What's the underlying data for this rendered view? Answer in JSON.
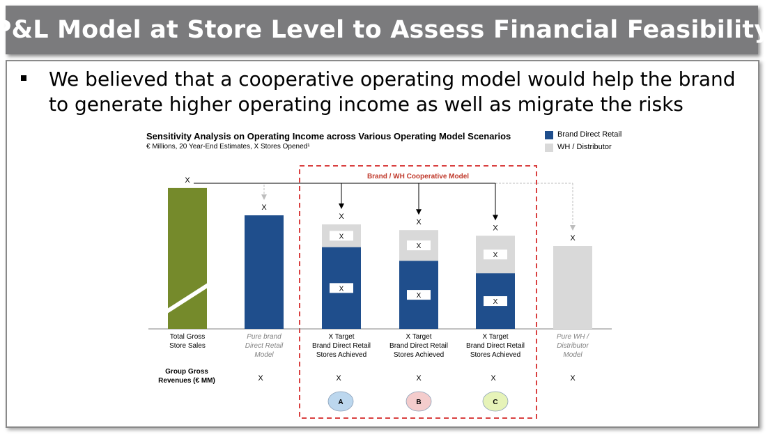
{
  "header": {
    "title": "P&L Model at Store Level to Assess Financial Feasibility"
  },
  "bullet": {
    "text": "We believed that a cooperative operating model would help the brand to generate higher operating income as well as migrate the risks"
  },
  "chart": {
    "title": "Sensitivity Analysis on Operating Income across Various Operating Model Scenarios",
    "subtitle": "€ Millions, 20   Year-End Estimates, X Stores Opened¹",
    "coop_box_label": "Brand / WH Cooperative Model",
    "legend": [
      {
        "label": "Brand Direct Retail",
        "color": "#1f4e8c"
      },
      {
        "label": "WH / Distributor",
        "color": "#d9d9d9"
      }
    ],
    "row_label": [
      "Group Gross",
      "Revenues (€ MM)"
    ]
  },
  "chart_data": {
    "type": "bar",
    "stacked": true,
    "categories": [
      "Total Gross Store Sales",
      "Pure brand Direct Retail Model",
      "X Target Brand Direct Retail Stores Achieved",
      "X Target Brand Direct Retail Stores Achieved",
      "X Target Brand Direct Retail Stores Achieved",
      "Pure WH / Distributor Model"
    ],
    "category_lines": [
      [
        "Total Gross",
        "Store Sales"
      ],
      [
        "Pure brand",
        "Direct Retail",
        "Model"
      ],
      [
        "X       Target",
        "Brand Direct Retail",
        "Stores Achieved"
      ],
      [
        "X       Target",
        "Brand Direct Retail",
        "Stores Achieved"
      ],
      [
        "X       Target",
        "Brand Direct Retail",
        "Stores Achieved"
      ],
      [
        "Pure WH /",
        "Distributor",
        "Model"
      ]
    ],
    "category_italic": [
      false,
      true,
      false,
      false,
      false,
      true
    ],
    "series": [
      {
        "name": "Brand Direct Retail",
        "color": "#1f4e8c",
        "values": [
          0,
          100,
          72,
          60,
          49,
          0
        ]
      },
      {
        "name": "WH / Distributor",
        "color": "#d9d9d9",
        "values": [
          0,
          0,
          20,
          27,
          33,
          73
        ]
      }
    ],
    "total_bar": {
      "value": 124,
      "color": "#758a2b",
      "broken_axis": true
    },
    "bar_labels": [
      "X",
      "X",
      "X",
      "X",
      "X",
      "X"
    ],
    "segment_labels": [
      [
        "",
        ""
      ],
      [
        "",
        ""
      ],
      [
        "X",
        "X"
      ],
      [
        "X",
        "X"
      ],
      [
        "X",
        "X"
      ],
      [
        "",
        ""
      ]
    ],
    "group_gross_revenues": [
      "",
      "X",
      "X",
      "X",
      "X",
      "X"
    ],
    "scenario_badges": [
      {
        "index": 2,
        "label": "A",
        "color": "#bcd7ee"
      },
      {
        "index": 3,
        "label": "B",
        "color": "#f4cccc"
      },
      {
        "index": 4,
        "label": "C",
        "color": "#e6f3b8"
      }
    ],
    "note": "Values are not disclosed in the chart (shown as X); bar heights are relative estimates."
  }
}
